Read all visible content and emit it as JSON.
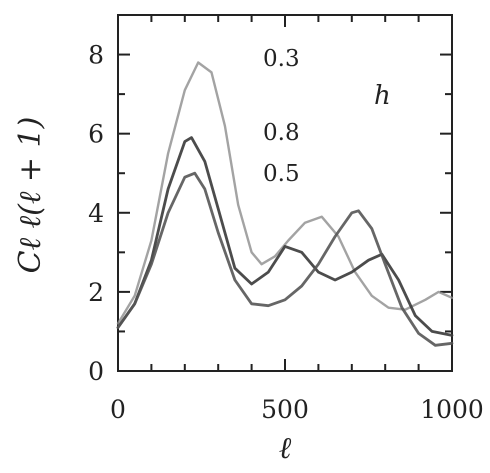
{
  "chart_data": {
    "type": "line",
    "title": "",
    "xlabel": "ℓ",
    "ylabel": "Cℓ ℓ(ℓ + 1)",
    "xlim": [
      0,
      1000
    ],
    "ylim": [
      0,
      9
    ],
    "x_ticks": [
      0,
      500,
      1000
    ],
    "y_ticks": [
      0,
      2,
      4,
      6,
      8
    ],
    "grid": false,
    "legend": {
      "title": "h",
      "placement": "top-right"
    },
    "series": [
      {
        "name": "0.3",
        "color": "#8f8f8f",
        "points": [
          [
            0,
            1.2
          ],
          [
            50,
            1.9
          ],
          [
            100,
            3.3
          ],
          [
            150,
            5.5
          ],
          [
            200,
            7.1
          ],
          [
            240,
            7.8
          ],
          [
            280,
            7.55
          ],
          [
            320,
            6.2
          ],
          [
            360,
            4.2
          ],
          [
            400,
            3.0
          ],
          [
            430,
            2.7
          ],
          [
            470,
            2.9
          ],
          [
            510,
            3.3
          ],
          [
            560,
            3.75
          ],
          [
            610,
            3.9
          ],
          [
            660,
            3.4
          ],
          [
            710,
            2.5
          ],
          [
            760,
            1.9
          ],
          [
            810,
            1.6
          ],
          [
            860,
            1.55
          ],
          [
            920,
            1.8
          ],
          [
            960,
            2.0
          ],
          [
            1000,
            1.85
          ]
        ]
      },
      {
        "name": "0.8",
        "color": "#3d3d3d",
        "points": [
          [
            0,
            1.1
          ],
          [
            50,
            1.7
          ],
          [
            100,
            2.8
          ],
          [
            150,
            4.6
          ],
          [
            200,
            5.8
          ],
          [
            220,
            5.9
          ],
          [
            260,
            5.3
          ],
          [
            300,
            4.1
          ],
          [
            350,
            2.6
          ],
          [
            400,
            2.2
          ],
          [
            450,
            2.5
          ],
          [
            500,
            3.15
          ],
          [
            550,
            3.0
          ],
          [
            600,
            2.5
          ],
          [
            650,
            2.3
          ],
          [
            700,
            2.5
          ],
          [
            750,
            2.8
          ],
          [
            790,
            2.95
          ],
          [
            840,
            2.3
          ],
          [
            890,
            1.4
          ],
          [
            940,
            1.0
          ],
          [
            1000,
            0.9
          ]
        ]
      },
      {
        "name": "0.5",
        "color": "#555555",
        "points": [
          [
            0,
            1.1
          ],
          [
            50,
            1.7
          ],
          [
            100,
            2.7
          ],
          [
            150,
            4.0
          ],
          [
            200,
            4.9
          ],
          [
            230,
            5.0
          ],
          [
            260,
            4.6
          ],
          [
            300,
            3.5
          ],
          [
            350,
            2.3
          ],
          [
            400,
            1.7
          ],
          [
            450,
            1.65
          ],
          [
            500,
            1.8
          ],
          [
            550,
            2.15
          ],
          [
            600,
            2.7
          ],
          [
            650,
            3.4
          ],
          [
            700,
            4.0
          ],
          [
            720,
            4.05
          ],
          [
            760,
            3.6
          ],
          [
            800,
            2.7
          ],
          [
            850,
            1.6
          ],
          [
            900,
            0.95
          ],
          [
            950,
            0.65
          ],
          [
            1000,
            0.7
          ]
        ]
      }
    ]
  }
}
